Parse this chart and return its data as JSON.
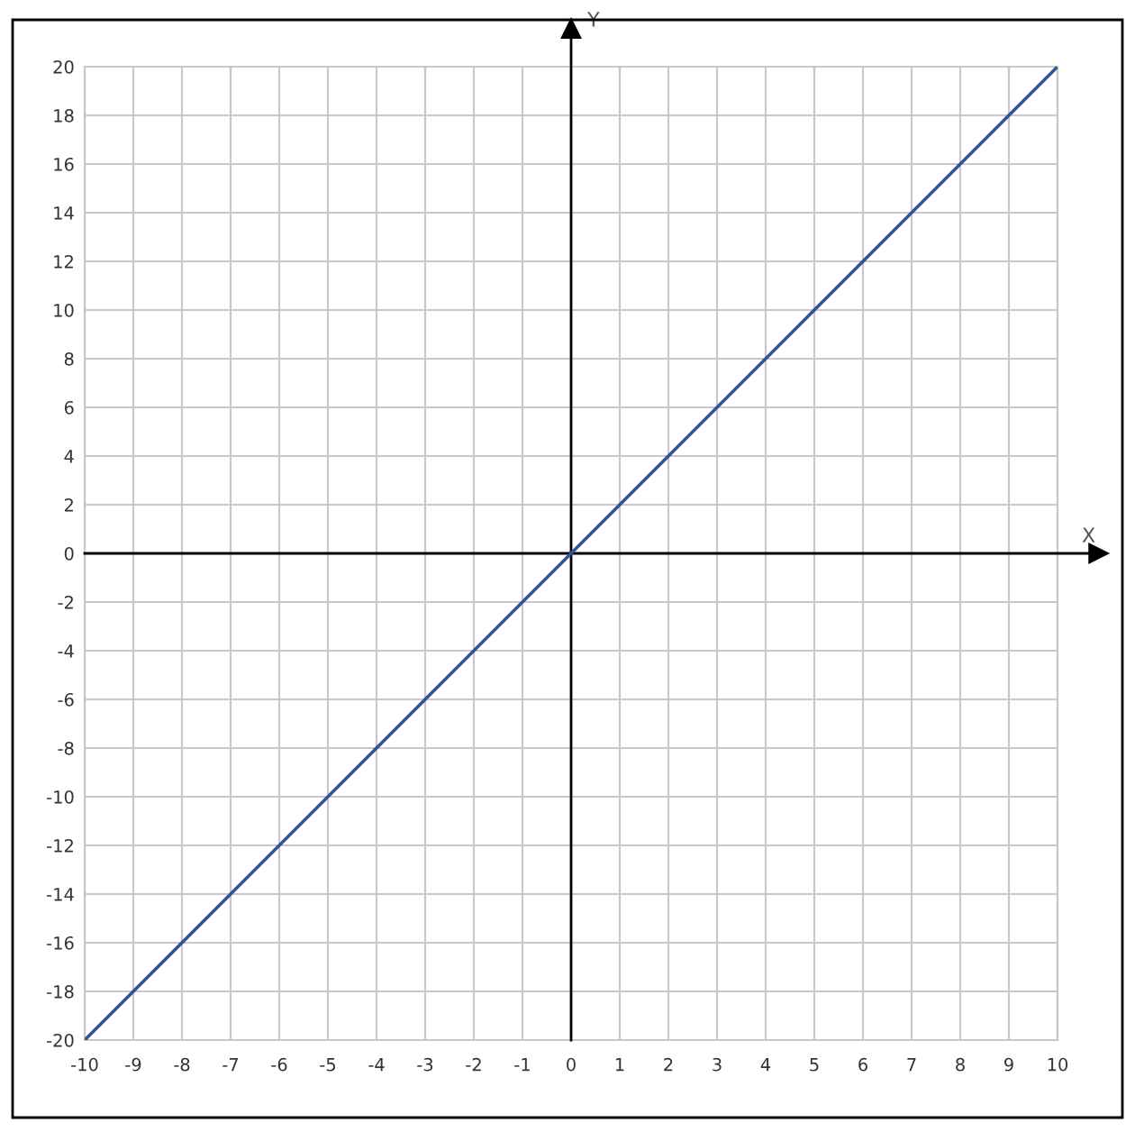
{
  "chart_data": {
    "type": "line",
    "xlabel": "X",
    "ylabel": "Y",
    "x": [
      -10,
      10
    ],
    "series": [
      {
        "color": "#34529a",
        "values": [
          -20,
          20
        ]
      }
    ],
    "xlim": [
      -10,
      10
    ],
    "ylim": [
      -20,
      20
    ],
    "xticks": [
      -10,
      -9,
      -8,
      -7,
      -6,
      -5,
      -4,
      -3,
      -2,
      -1,
      0,
      1,
      2,
      3,
      4,
      5,
      6,
      7,
      8,
      9,
      10
    ],
    "yticks": [
      -20,
      -18,
      -16,
      -14,
      -12,
      -10,
      -8,
      -6,
      -4,
      -2,
      0,
      2,
      4,
      6,
      8,
      10,
      12,
      14,
      16,
      18,
      20
    ],
    "grid": true,
    "line_style": "solid"
  }
}
